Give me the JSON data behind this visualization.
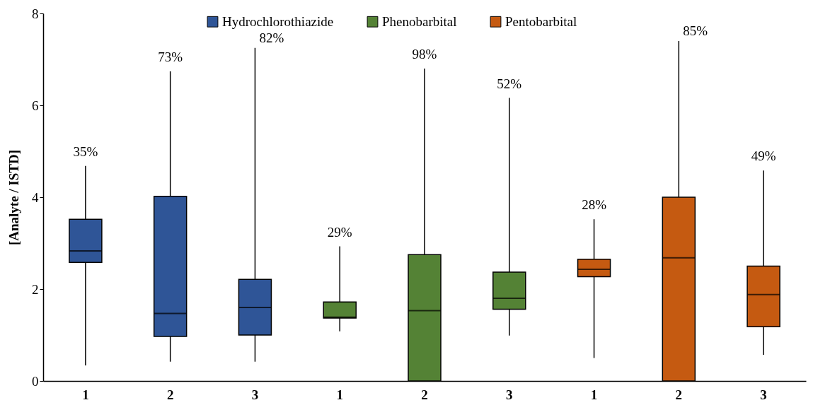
{
  "chart_data": {
    "type": "box",
    "ylabel": "[Analyte / ISTD]",
    "categories": [
      "1",
      "2",
      "3",
      "1",
      "2",
      "3",
      "1",
      "2",
      "3"
    ],
    "ylim": [
      0,
      8
    ],
    "yticks": [
      0,
      2,
      4,
      6,
      8
    ],
    "grid": false,
    "legend": "top",
    "series": [
      {
        "name": "Hydrochlorothiazide",
        "color": "#2f5597",
        "boxes": [
          {
            "low": 0.34,
            "q1": 2.58,
            "median": 2.83,
            "q3": 3.52,
            "high": 4.68
          },
          {
            "low": 0.42,
            "q1": 0.97,
            "median": 1.47,
            "q3": 4.02,
            "high": 6.74
          },
          {
            "low": 0.42,
            "q1": 1.0,
            "median": 1.6,
            "q3": 2.21,
            "high": 7.25
          },
          null,
          null,
          null,
          null,
          null,
          null
        ],
        "value_labels": [
          "35%",
          "73%",
          "82%",
          null,
          null,
          null,
          null,
          null,
          null
        ]
      },
      {
        "name": "Phenobarbital",
        "color": "#548235",
        "boxes": [
          null,
          null,
          null,
          {
            "low": 1.08,
            "q1": 1.37,
            "median": 1.39,
            "q3": 1.72,
            "high": 2.93
          },
          {
            "low": 0,
            "q1": 0,
            "median": 1.53,
            "q3": 2.75,
            "high": 6.8
          },
          {
            "low": 0.99,
            "q1": 1.56,
            "median": 1.8,
            "q3": 2.37,
            "high": 6.16
          },
          null,
          null,
          null
        ],
        "value_labels": [
          null,
          null,
          null,
          "29%",
          "98%",
          "52%",
          null,
          null,
          null
        ]
      },
      {
        "name": "Pentobarbital",
        "color": "#c55a11",
        "boxes": [
          null,
          null,
          null,
          null,
          null,
          null,
          {
            "low": 0.5,
            "q1": 2.27,
            "median": 2.43,
            "q3": 2.65,
            "high": 3.52
          },
          {
            "low": 0,
            "q1": 0,
            "median": 2.68,
            "q3": 4.0,
            "high": 7.4
          },
          {
            "low": 0.57,
            "q1": 1.18,
            "median": 1.88,
            "q3": 2.5,
            "high": 4.58
          }
        ],
        "value_labels": [
          null,
          null,
          null,
          null,
          null,
          null,
          "28%",
          "85%",
          "49%"
        ]
      }
    ]
  }
}
